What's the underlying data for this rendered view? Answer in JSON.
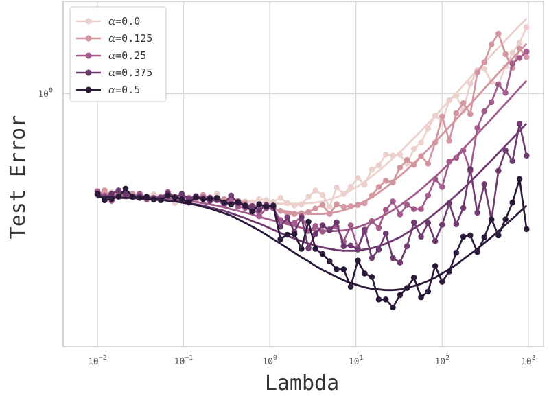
{
  "chart_data": {
    "type": "line",
    "xscale": "log",
    "yscale": "log",
    "xlabel": "Lambda",
    "ylabel": "Test Error",
    "xlim": [
      0.004,
      1500
    ],
    "ylim": [
      0.58,
      1.22
    ],
    "grid": true,
    "legend_location": "top-left",
    "x_ticks": [
      {
        "value": 0.01,
        "base": "10",
        "exp": "−2"
      },
      {
        "value": 0.1,
        "base": "10",
        "exp": "−1"
      },
      {
        "value": 1,
        "base": "10",
        "exp": "0"
      },
      {
        "value": 10,
        "base": "10",
        "exp": "1"
      },
      {
        "value": 100,
        "base": "10",
        "exp": "2"
      },
      {
        "value": 1000,
        "base": "10",
        "exp": "3"
      }
    ],
    "y_ticks": [
      {
        "value": 1,
        "base": "10",
        "exp": "0"
      }
    ],
    "x": [
      0.01,
      0.0121,
      0.0146,
      0.0176,
      0.0212,
      0.0256,
      0.0309,
      0.0373,
      0.045,
      0.0543,
      0.0655,
      0.0791,
      0.0954,
      0.115,
      0.139,
      0.168,
      0.202,
      0.244,
      0.295,
      0.356,
      0.429,
      0.518,
      0.625,
      0.754,
      0.91,
      1.1,
      1.33,
      1.6,
      1.93,
      2.33,
      2.81,
      3.39,
      4.09,
      4.94,
      5.96,
      7.2,
      8.69,
      10.5,
      12.6,
      15.3,
      18.4,
      22.2,
      26.8,
      32.4,
      39.1,
      47.1,
      56.9,
      68.7,
      82.9,
      100,
      121,
      146,
      176,
      212,
      256,
      309,
      373,
      450,
      543,
      655,
      791,
      954
    ],
    "series": [
      {
        "name": "α=0.0",
        "label_greek": "α",
        "label_rest": "=0.0",
        "color": "#ecd0cc",
        "values": [
          0.812,
          0.803,
          0.809,
          0.801,
          0.8,
          0.803,
          0.806,
          0.8,
          0.805,
          0.802,
          0.802,
          0.79,
          0.803,
          0.8,
          0.801,
          0.803,
          0.794,
          0.806,
          0.787,
          0.798,
          0.79,
          0.793,
          0.791,
          0.797,
          0.795,
          0.792,
          0.799,
          0.79,
          0.786,
          0.788,
          0.801,
          0.812,
          0.804,
          0.784,
          0.817,
          0.806,
          0.818,
          0.834,
          0.822,
          0.849,
          0.857,
          0.877,
          0.875,
          0.877,
          0.86,
          0.888,
          0.9,
          0.928,
          0.954,
          0.941,
          0.986,
          0.996,
          0.964,
          1.022,
          1.052,
          1.055,
          1.026,
          1.02,
          1.06,
          1.092,
          1.116,
          1.154
        ],
        "trend": [
          0.804,
          0.804,
          0.803,
          0.803,
          0.803,
          0.803,
          0.803,
          0.802,
          0.802,
          0.802,
          0.802,
          0.801,
          0.801,
          0.8,
          0.8,
          0.799,
          0.798,
          0.798,
          0.797,
          0.796,
          0.795,
          0.794,
          0.793,
          0.792,
          0.791,
          0.79,
          0.789,
          0.789,
          0.789,
          0.789,
          0.79,
          0.791,
          0.793,
          0.796,
          0.8,
          0.805,
          0.812,
          0.819,
          0.827,
          0.837,
          0.847,
          0.858,
          0.87,
          0.882,
          0.895,
          0.909,
          0.923,
          0.938,
          0.953,
          0.969,
          0.985,
          1.001,
          1.018,
          1.035,
          1.052,
          1.069,
          1.087,
          1.104,
          1.122,
          1.14,
          1.158,
          1.176
        ]
      },
      {
        "name": "α=0.125",
        "label_greek": "α",
        "label_rest": "=0.125",
        "color": "#d396a0",
        "values": [
          0.804,
          0.812,
          0.801,
          0.806,
          0.803,
          0.806,
          0.804,
          0.796,
          0.799,
          0.799,
          0.8,
          0.8,
          0.803,
          0.797,
          0.796,
          0.804,
          0.798,
          0.797,
          0.797,
          0.79,
          0.794,
          0.79,
          0.784,
          0.787,
          0.786,
          0.781,
          0.777,
          0.772,
          0.772,
          0.773,
          0.775,
          0.781,
          0.787,
          0.772,
          0.788,
          0.784,
          0.785,
          0.787,
          0.79,
          0.803,
          0.818,
          0.829,
          0.826,
          0.853,
          0.867,
          0.858,
          0.874,
          0.86,
          0.9,
          0.952,
          0.903,
          0.959,
          0.98,
          0.957,
          1.047,
          1.07,
          1.112,
          1.138,
          1.089,
          1.057,
          1.102,
          1.082
        ],
        "trend": [
          0.803,
          0.803,
          0.803,
          0.803,
          0.802,
          0.802,
          0.802,
          0.802,
          0.801,
          0.801,
          0.8,
          0.8,
          0.799,
          0.798,
          0.797,
          0.796,
          0.795,
          0.794,
          0.793,
          0.792,
          0.79,
          0.788,
          0.786,
          0.784,
          0.782,
          0.78,
          0.778,
          0.776,
          0.774,
          0.773,
          0.772,
          0.772,
          0.772,
          0.773,
          0.775,
          0.778,
          0.782,
          0.787,
          0.793,
          0.8,
          0.808,
          0.817,
          0.827,
          0.838,
          0.849,
          0.861,
          0.874,
          0.887,
          0.901,
          0.916,
          0.931,
          0.946,
          0.962,
          0.978,
          0.994,
          1.011,
          1.028,
          1.045,
          1.062,
          1.079,
          1.096,
          1.114
        ]
      },
      {
        "name": "α=0.25",
        "label_greek": "α",
        "label_rest": "=0.25",
        "color": "#a35b8c",
        "values": [
          0.81,
          0.803,
          0.794,
          0.808,
          0.804,
          0.8,
          0.806,
          0.797,
          0.797,
          0.799,
          0.809,
          0.801,
          0.8,
          0.799,
          0.802,
          0.8,
          0.8,
          0.795,
          0.787,
          0.795,
          0.784,
          0.782,
          0.785,
          0.768,
          0.781,
          0.781,
          0.762,
          0.758,
          0.757,
          0.768,
          0.744,
          0.752,
          0.743,
          0.747,
          0.751,
          0.727,
          0.753,
          0.717,
          0.743,
          0.76,
          0.749,
          0.779,
          0.793,
          0.771,
          0.787,
          0.78,
          0.78,
          0.803,
          0.832,
          0.818,
          0.864,
          0.871,
          0.885,
          0.847,
          0.929,
          0.963,
          0.982,
          1.02,
          1.002,
          1.067,
          1.08,
          1.095
        ],
        "trend": [
          0.802,
          0.802,
          0.802,
          0.802,
          0.801,
          0.801,
          0.8,
          0.8,
          0.799,
          0.798,
          0.797,
          0.796,
          0.795,
          0.794,
          0.792,
          0.79,
          0.788,
          0.786,
          0.783,
          0.78,
          0.777,
          0.774,
          0.771,
          0.767,
          0.764,
          0.761,
          0.758,
          0.755,
          0.752,
          0.749,
          0.747,
          0.745,
          0.744,
          0.744,
          0.744,
          0.745,
          0.747,
          0.75,
          0.754,
          0.759,
          0.765,
          0.771,
          0.778,
          0.786,
          0.795,
          0.804,
          0.814,
          0.825,
          0.836,
          0.848,
          0.861,
          0.874,
          0.888,
          0.902,
          0.917,
          0.932,
          0.947,
          0.963,
          0.979,
          0.995,
          1.012,
          1.028
        ]
      },
      {
        "name": "α=0.375",
        "label_greek": "α",
        "label_rest": "=0.375",
        "color": "#6e3a6f",
        "values": [
          0.806,
          0.8,
          0.806,
          0.812,
          0.806,
          0.801,
          0.802,
          0.799,
          0.799,
          0.8,
          0.806,
          0.8,
          0.806,
          0.797,
          0.802,
          0.797,
          0.794,
          0.796,
          0.79,
          0.803,
          0.79,
          0.785,
          0.785,
          0.778,
          0.787,
          0.784,
          0.751,
          0.766,
          0.743,
          0.766,
          0.717,
          0.739,
          0.753,
          0.745,
          0.758,
          0.72,
          0.721,
          0.715,
          0.746,
          0.702,
          0.715,
          0.74,
          0.702,
          0.695,
          0.72,
          0.758,
          0.735,
          0.757,
          0.728,
          0.754,
          0.79,
          0.755,
          0.782,
          0.85,
          0.774,
          0.823,
          0.762,
          0.847,
          0.885,
          0.865,
          0.937,
          0.875
        ],
        "trend": [
          0.8,
          0.8,
          0.8,
          0.8,
          0.799,
          0.799,
          0.798,
          0.797,
          0.796,
          0.796,
          0.795,
          0.793,
          0.792,
          0.79,
          0.788,
          0.786,
          0.783,
          0.78,
          0.777,
          0.773,
          0.769,
          0.765,
          0.76,
          0.756,
          0.751,
          0.746,
          0.741,
          0.736,
          0.732,
          0.728,
          0.724,
          0.721,
          0.718,
          0.716,
          0.714,
          0.713,
          0.713,
          0.713,
          0.715,
          0.717,
          0.72,
          0.724,
          0.729,
          0.734,
          0.741,
          0.748,
          0.755,
          0.764,
          0.773,
          0.783,
          0.793,
          0.804,
          0.815,
          0.827,
          0.84,
          0.853,
          0.866,
          0.88,
          0.894,
          0.908,
          0.923,
          0.938
        ]
      },
      {
        "name": "α=0.5",
        "label_greek": "α",
        "label_rest": "=0.5",
        "color": "#2b1a3a",
        "values": [
          0.806,
          0.795,
          0.797,
          0.801,
          0.815,
          0.801,
          0.799,
          0.801,
          0.796,
          0.795,
          0.803,
          0.8,
          0.797,
          0.791,
          0.8,
          0.797,
          0.798,
          0.799,
          0.791,
          0.788,
          0.792,
          0.786,
          0.776,
          0.788,
          0.784,
          0.786,
          0.731,
          0.738,
          0.739,
          0.716,
          0.759,
          0.716,
          0.708,
          0.697,
          0.685,
          0.685,
          0.66,
          0.698,
          0.679,
          0.674,
          0.642,
          0.642,
          0.631,
          0.648,
          0.658,
          0.673,
          0.645,
          0.653,
          0.69,
          0.667,
          0.682,
          0.71,
          0.735,
          0.737,
          0.711,
          0.734,
          0.763,
          0.737,
          0.763,
          0.791,
          0.832,
          0.747
        ],
        "trend": [
          0.8,
          0.8,
          0.8,
          0.799,
          0.799,
          0.799,
          0.798,
          0.797,
          0.797,
          0.796,
          0.794,
          0.793,
          0.791,
          0.789,
          0.787,
          0.784,
          0.781,
          0.777,
          0.773,
          0.769,
          0.763,
          0.757,
          0.751,
          0.745,
          0.738,
          0.731,
          0.724,
          0.717,
          0.71,
          0.703,
          0.697,
          0.69,
          0.684,
          0.679,
          0.674,
          0.669,
          0.665,
          0.662,
          0.659,
          0.657,
          0.656,
          0.655,
          0.655,
          0.656,
          0.658,
          0.661,
          0.664,
          0.668,
          0.673,
          0.679,
          0.685,
          0.692,
          0.7,
          0.708,
          0.716,
          0.725,
          0.734,
          0.744,
          0.754,
          0.764,
          0.775,
          0.786
        ]
      }
    ]
  }
}
